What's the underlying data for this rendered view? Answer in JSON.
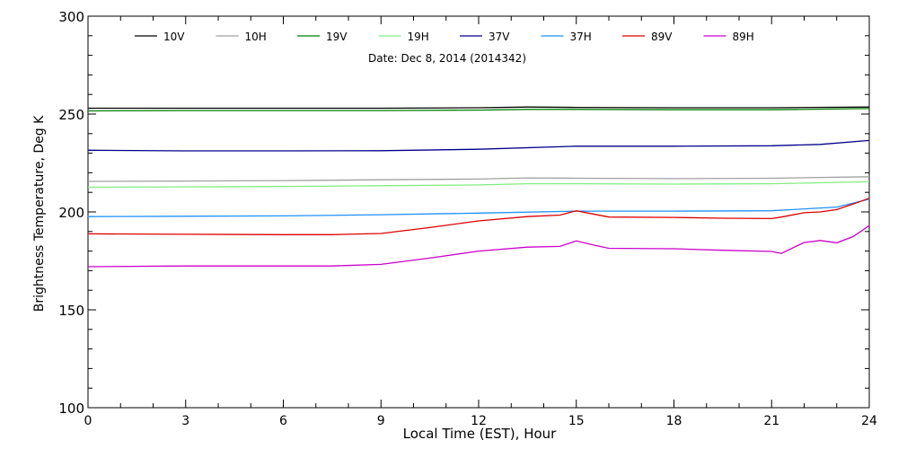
{
  "chart_data": {
    "type": "line",
    "title": "Date: Dec  8, 2014 (2014342)",
    "xlabel": "Local Time (EST), Hour",
    "ylabel": "Brightness Temperature, Deg K",
    "xlim": [
      0,
      24
    ],
    "ylim": [
      100,
      300
    ],
    "x_ticks": [
      0,
      3,
      6,
      9,
      12,
      15,
      18,
      21,
      24
    ],
    "y_ticks": [
      100,
      150,
      200,
      250,
      300
    ],
    "legend_position": "top",
    "grid": false,
    "series": [
      {
        "name": "10V",
        "color": "#000000",
        "x": [
          0,
          3,
          6,
          9,
          12,
          13.5,
          15,
          18,
          21,
          24
        ],
        "y": [
          253,
          253,
          253,
          253,
          253.2,
          253.6,
          253.4,
          253.2,
          253.2,
          253.6
        ]
      },
      {
        "name": "10H",
        "color": "#a0a0a0",
        "x": [
          0,
          3,
          6,
          9,
          12,
          13.5,
          15,
          18,
          21,
          24
        ],
        "y": [
          215.6,
          215.8,
          216,
          216.4,
          216.8,
          217.4,
          217.2,
          217,
          217.2,
          218
        ]
      },
      {
        "name": "19V",
        "color": "#008000",
        "x": [
          0,
          3,
          6,
          9,
          12,
          13.5,
          15,
          18,
          21,
          24
        ],
        "y": [
          251.6,
          251.8,
          251.8,
          251.8,
          252,
          252.4,
          252.4,
          252.2,
          252.2,
          252.8
        ]
      },
      {
        "name": "19H",
        "color": "#80ee80",
        "x": [
          0,
          3,
          6,
          9,
          12,
          13.5,
          15,
          18,
          21,
          24
        ],
        "y": [
          212.6,
          212.8,
          213,
          213.4,
          213.8,
          214.4,
          214.4,
          214.2,
          214.4,
          215.4
        ]
      },
      {
        "name": "37V",
        "color": "#00008b",
        "x": [
          0,
          3,
          6,
          9,
          12,
          15,
          18,
          21,
          22.5,
          24
        ],
        "y": [
          231.5,
          231.2,
          231.2,
          231.3,
          232,
          233.6,
          233.6,
          233.8,
          234.5,
          236.5
        ]
      },
      {
        "name": "37H",
        "color": "#1e90ff",
        "x": [
          0,
          3,
          6,
          9,
          12,
          15,
          18,
          21,
          23,
          24
        ],
        "y": [
          197.6,
          197.8,
          198,
          198.6,
          199.4,
          200.4,
          200.4,
          200.6,
          202.5,
          206.5
        ]
      },
      {
        "name": "89V",
        "color": "#dd0000",
        "x": [
          0,
          3,
          6,
          7.5,
          9,
          10.5,
          12,
          13.5,
          14.5,
          15,
          15.5,
          16,
          18,
          19.5,
          21,
          21.3,
          22,
          22.5,
          23,
          23.5,
          24
        ],
        "y": [
          188.8,
          188.6,
          188.4,
          188.4,
          189,
          192,
          195.4,
          197.6,
          198.4,
          200.6,
          199,
          197.4,
          197.2,
          196.8,
          196.6,
          197.4,
          199.6,
          200,
          201.2,
          204,
          207
        ]
      },
      {
        "name": "89H",
        "color": "#cc00cc",
        "x": [
          0,
          3,
          6,
          7.5,
          9,
          10.5,
          12,
          13.5,
          14.5,
          15,
          15.5,
          16,
          18,
          19.5,
          21,
          21.3,
          22,
          22.5,
          23,
          23.5,
          24
        ],
        "y": [
          172,
          172.4,
          172.4,
          172.4,
          173.2,
          176.4,
          180,
          182,
          182.4,
          185.2,
          183.2,
          181.4,
          181.2,
          180.4,
          179.8,
          178.8,
          184.4,
          185.4,
          184.2,
          187.4,
          193
        ]
      }
    ]
  }
}
